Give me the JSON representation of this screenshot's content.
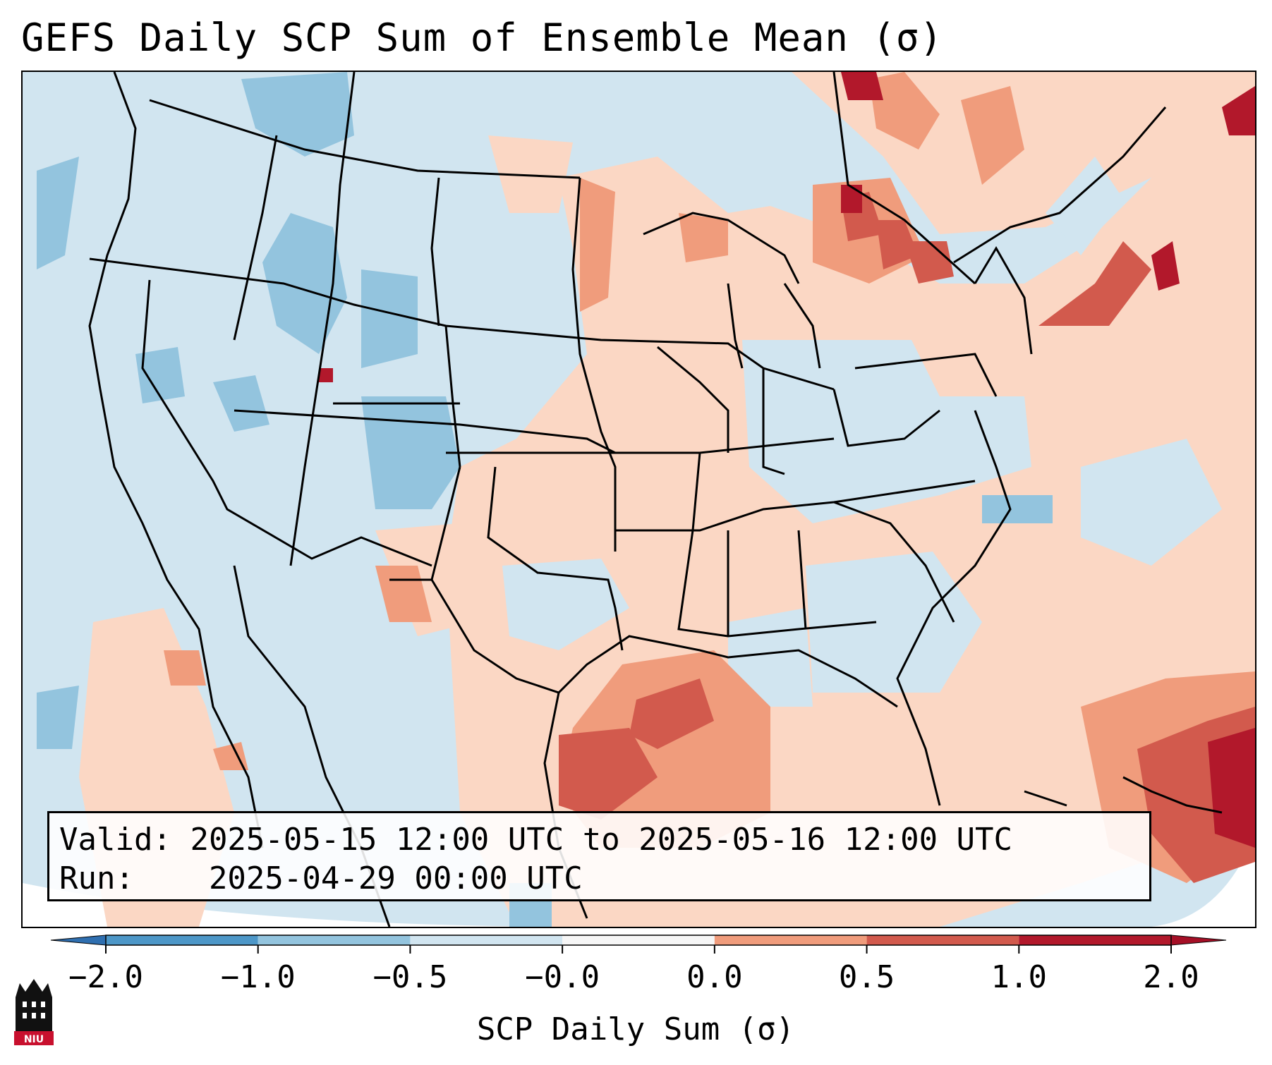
{
  "title": "GEFS Daily SCP Sum of Ensemble Mean (σ)",
  "info": {
    "valid_label": "Valid:",
    "valid_value": "2025-05-15 12:00 UTC to 2025-05-16 12:00 UTC",
    "run_label": "Run:",
    "run_value": "2025-04-29 00:00 UTC"
  },
  "colorbar": {
    "label": "SCP Daily Sum (σ)",
    "ticks": [
      "−2.0",
      "−1.0",
      "−0.5",
      "−0.0",
      "0.0",
      "0.5",
      "1.0",
      "2.0"
    ],
    "colors": [
      "#4d97c8",
      "#93c4de",
      "#d1e5f0",
      "#f6f6f6",
      "#fbd7c4",
      "#f09c7c",
      "#d25a4d",
      "#b2182b"
    ],
    "extend": "both"
  },
  "logo": {
    "text": "NIU",
    "color": "#c8102e"
  },
  "regions": [
    {
      "name": "upper-midwest-positive",
      "sigma": 0.3
    },
    {
      "name": "michigan-positive",
      "sigma": 1.2
    },
    {
      "name": "gulf-coast-positive",
      "sigma": 1.0
    },
    {
      "name": "caribbean-positive",
      "sigma": 1.6
    },
    {
      "name": "rockies-negative",
      "sigma": -0.7
    }
  ]
}
